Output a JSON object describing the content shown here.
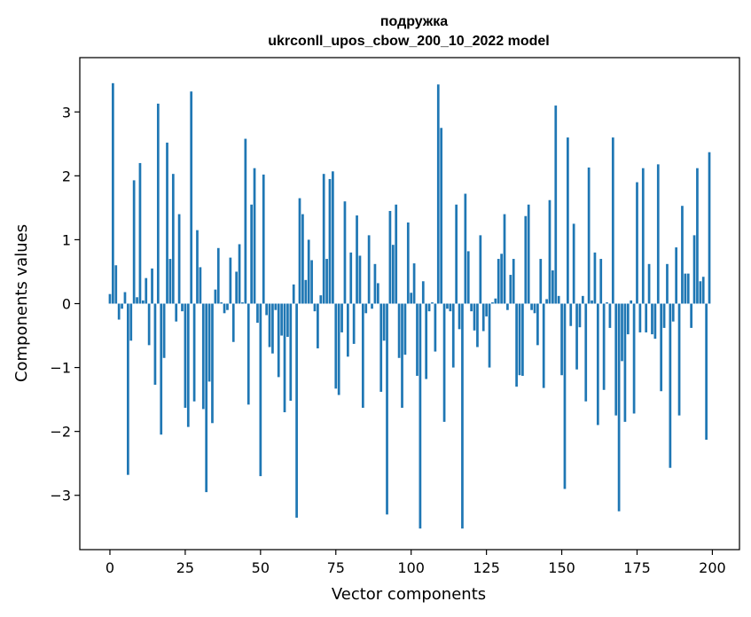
{
  "chart_data": {
    "type": "bar",
    "title": "подружка",
    "subtitle": "ukrconll_upos_cbow_200_10_2022 model",
    "xlabel": "Vector components",
    "ylabel": "Components values",
    "xlim": [
      -10,
      209
    ],
    "ylim": [
      -3.85,
      3.85
    ],
    "xticks": [
      0,
      25,
      50,
      75,
      100,
      125,
      150,
      175,
      200
    ],
    "yticks": [
      -3,
      -2,
      -1,
      0,
      1,
      2,
      3
    ],
    "bar_color": "#1f77b4",
    "grid": false,
    "x": [
      0,
      1,
      2,
      3,
      4,
      5,
      6,
      7,
      8,
      9,
      10,
      11,
      12,
      13,
      14,
      15,
      16,
      17,
      18,
      19,
      20,
      21,
      22,
      23,
      24,
      25,
      26,
      27,
      28,
      29,
      30,
      31,
      32,
      33,
      34,
      35,
      36,
      37,
      38,
      39,
      40,
      41,
      42,
      43,
      44,
      45,
      46,
      47,
      48,
      49,
      50,
      51,
      52,
      53,
      54,
      55,
      56,
      57,
      58,
      59,
      60,
      61,
      62,
      63,
      64,
      65,
      66,
      67,
      68,
      69,
      70,
      71,
      72,
      73,
      74,
      75,
      76,
      77,
      78,
      79,
      80,
      81,
      82,
      83,
      84,
      85,
      86,
      87,
      88,
      89,
      90,
      91,
      92,
      93,
      94,
      95,
      96,
      97,
      98,
      99,
      100,
      101,
      102,
      103,
      104,
      105,
      106,
      107,
      108,
      109,
      110,
      111,
      112,
      113,
      114,
      115,
      116,
      117,
      118,
      119,
      120,
      121,
      122,
      123,
      124,
      125,
      126,
      127,
      128,
      129,
      130,
      131,
      132,
      133,
      134,
      135,
      136,
      137,
      138,
      139,
      140,
      141,
      142,
      143,
      144,
      145,
      146,
      147,
      148,
      149,
      150,
      151,
      152,
      153,
      154,
      155,
      156,
      157,
      158,
      159,
      160,
      161,
      162,
      163,
      164,
      165,
      166,
      167,
      168,
      169,
      170,
      171,
      172,
      173,
      174,
      175,
      176,
      177,
      178,
      179,
      180,
      181,
      182,
      183,
      184,
      185,
      186,
      187,
      188,
      189,
      190,
      191,
      192,
      193,
      194,
      195,
      196,
      197,
      198,
      199
    ],
    "values": [
      0.15,
      3.45,
      0.6,
      -0.25,
      -0.08,
      0.18,
      -2.68,
      -0.58,
      1.93,
      0.1,
      2.2,
      0.05,
      0.4,
      -0.65,
      0.55,
      -1.27,
      3.13,
      -2.05,
      -0.85,
      2.52,
      0.7,
      2.03,
      -0.28,
      1.4,
      -0.12,
      -1.63,
      -1.93,
      3.32,
      -1.53,
      1.15,
      0.57,
      -1.65,
      -2.95,
      -1.22,
      -1.87,
      0.22,
      0.87,
      0.02,
      -0.15,
      -0.1,
      0.72,
      -0.6,
      0.5,
      0.93,
      0.02,
      2.58,
      -1.58,
      1.55,
      2.12,
      -0.3,
      -2.7,
      2.02,
      -0.18,
      -0.68,
      -0.78,
      -0.1,
      -1.15,
      -0.5,
      -1.7,
      -0.52,
      -1.52,
      0.3,
      -3.35,
      1.65,
      1.4,
      0.37,
      1.0,
      0.68,
      -0.12,
      -0.7,
      0.13,
      2.03,
      0.7,
      1.95,
      2.07,
      -1.33,
      -1.43,
      -0.45,
      1.6,
      -0.83,
      0.8,
      -0.63,
      1.38,
      0.75,
      -1.63,
      -0.15,
      1.07,
      -0.08,
      0.62,
      0.32,
      -1.38,
      -0.58,
      -3.3,
      1.45,
      0.92,
      1.55,
      -0.85,
      -1.63,
      -0.8,
      1.27,
      0.17,
      0.63,
      -1.13,
      -3.52,
      0.35,
      -1.18,
      -0.12,
      0.02,
      -0.75,
      3.43,
      2.75,
      -1.85,
      -0.08,
      -0.12,
      -1.0,
      1.55,
      -0.4,
      -3.52,
      1.72,
      0.82,
      -0.12,
      -0.42,
      -0.68,
      1.07,
      -0.43,
      -0.2,
      -1.0,
      0.02,
      0.08,
      0.7,
      0.78,
      1.4,
      -0.1,
      0.45,
      0.7,
      -1.3,
      -1.12,
      -1.13,
      1.37,
      1.55,
      -0.1,
      -0.15,
      -0.65,
      0.7,
      -1.32,
      0.07,
      1.62,
      0.52,
      3.1,
      0.12,
      -1.12,
      -2.9,
      2.6,
      -0.35,
      1.25,
      -1.03,
      -0.37,
      0.12,
      -1.53,
      2.13,
      0.05,
      0.8,
      -1.9,
      0.7,
      -1.35,
      0.02,
      -0.38,
      2.6,
      -1.75,
      -3.25,
      -0.9,
      -1.85,
      -0.48,
      0.05,
      -1.72,
      1.9,
      -0.45,
      2.12,
      -0.45,
      0.62,
      -0.48,
      -0.55,
      2.18,
      -1.37,
      -0.38,
      0.62,
      -2.57,
      -0.28,
      0.88,
      -1.75,
      1.53,
      0.47,
      0.47,
      -0.38,
      1.07,
      2.12,
      0.35,
      0.42,
      -2.13,
      2.37
    ]
  }
}
